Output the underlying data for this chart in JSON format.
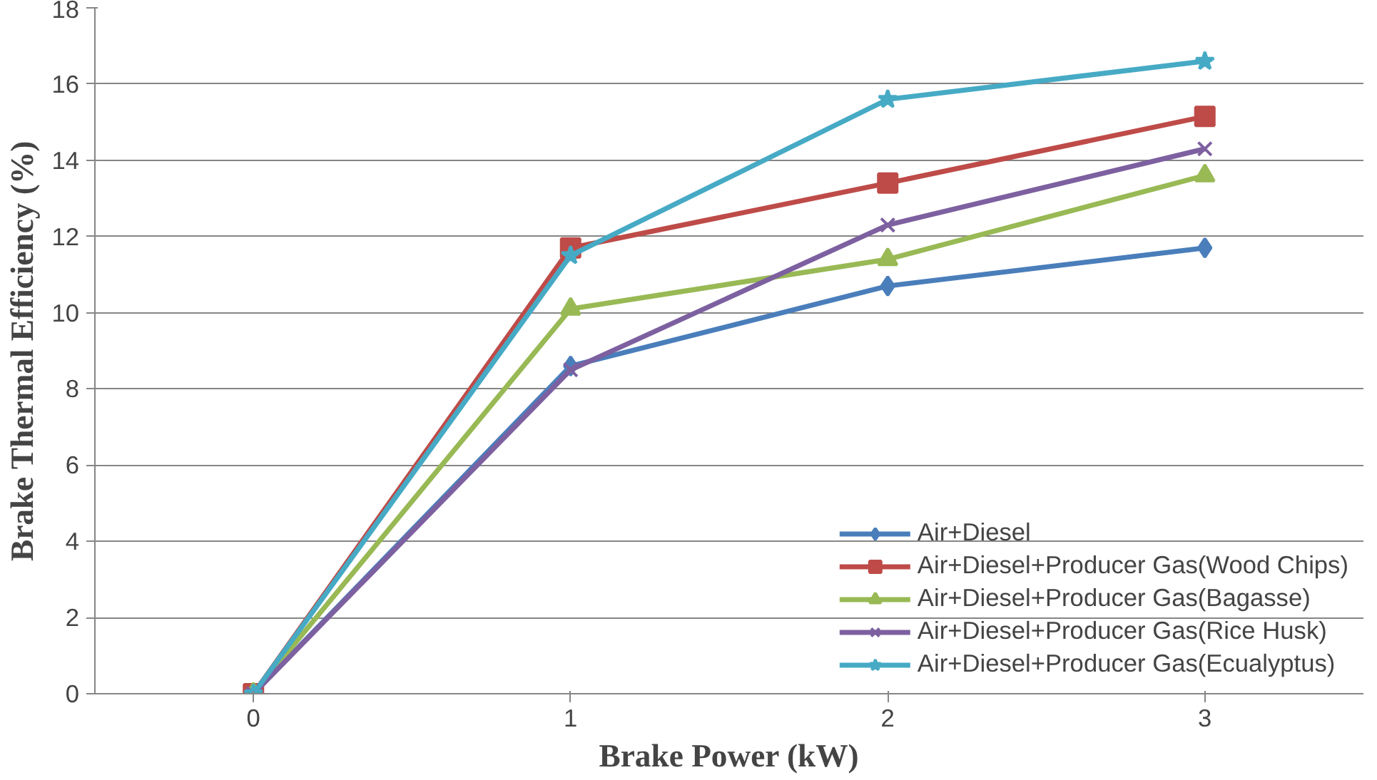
{
  "chart_data": {
    "type": "line",
    "xlabel": "Brake Power (kW)",
    "ylabel": "Brake Thermal Efficiency (%)",
    "categories": [
      "0",
      "1",
      "2",
      "3"
    ],
    "ylim": [
      0,
      18
    ],
    "yticks": [
      0,
      2,
      4,
      6,
      8,
      10,
      12,
      14,
      16,
      18
    ],
    "grid": "y",
    "legend": "bottom right",
    "line_style": "solid",
    "series": [
      {
        "name": "Air+Diesel",
        "color": "#4a7ebb",
        "marker": "diamond",
        "values": [
          0,
          8.6,
          10.7,
          11.7
        ]
      },
      {
        "name": "Air+Diesel+Producer Gas(Wood Chips)",
        "color": "#be4b48",
        "marker": "square",
        "values": [
          0,
          11.7,
          13.4,
          15.15
        ]
      },
      {
        "name": "Air+Diesel+Producer Gas(Bagasse)",
        "color": "#98b954",
        "marker": "triangle",
        "values": [
          0,
          10.1,
          11.4,
          13.6
        ]
      },
      {
        "name": "Air+Diesel+Producer Gas(Rice Husk)",
        "color": "#7d60a0",
        "marker": "cross",
        "values": [
          0,
          8.5,
          12.3,
          14.3
        ]
      },
      {
        "name": "Air+Diesel+Producer Gas(Ecualyptus)",
        "color": "#46aac5",
        "marker": "star",
        "values": [
          0,
          11.5,
          15.6,
          16.6
        ]
      }
    ]
  }
}
